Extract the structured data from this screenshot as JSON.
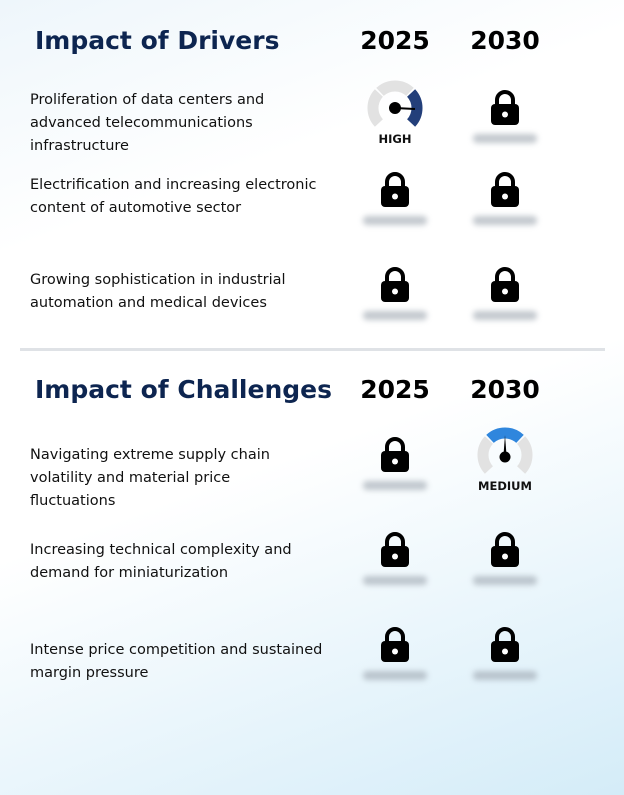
{
  "drivers": {
    "title": "Impact of Drivers",
    "years": [
      "2025",
      "2030"
    ],
    "rows": [
      {
        "text": "Proliferation of data centers and advanced telecommunications infrastructure",
        "y2025": {
          "type": "gauge",
          "level": "high",
          "label": "HIGH"
        },
        "y2030": {
          "type": "lock"
        }
      },
      {
        "text": "Electrification and increasing electronic content of automotive sector",
        "y2025": {
          "type": "lock"
        },
        "y2030": {
          "type": "lock"
        }
      },
      {
        "text": "Growing sophistication in industrial automation and medical devices",
        "y2025": {
          "type": "lock"
        },
        "y2030": {
          "type": "lock"
        }
      }
    ]
  },
  "challenges": {
    "title": "Impact of Challenges",
    "years": [
      "2025",
      "2030"
    ],
    "rows": [
      {
        "text": "Navigating extreme supply chain volatility and material price fluctuations",
        "y2025": {
          "type": "lock"
        },
        "y2030": {
          "type": "gauge",
          "level": "medium",
          "label": "MEDIUM"
        }
      },
      {
        "text": "Increasing technical complexity and demand for miniaturization",
        "y2025": {
          "type": "lock"
        },
        "y2030": {
          "type": "lock"
        }
      },
      {
        "text": "Intense price competition and sustained margin pressure",
        "y2025": {
          "type": "lock"
        },
        "y2030": {
          "type": "lock"
        }
      }
    ]
  },
  "colors": {
    "title": "#0d2550",
    "high": "#233f7a",
    "medium": "#2f86dd",
    "gauge_bg": "#e2e2e2"
  }
}
